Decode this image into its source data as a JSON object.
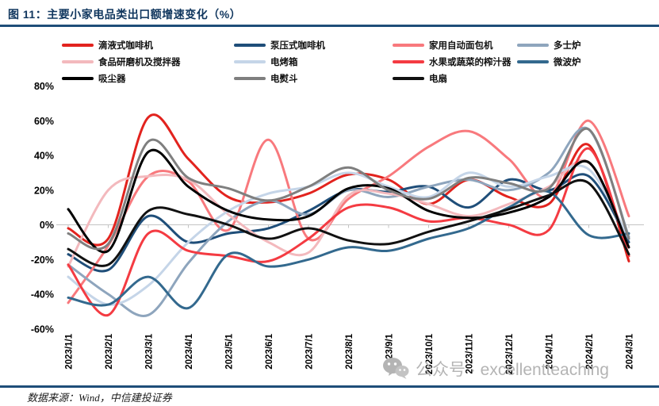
{
  "figure": {
    "title": "图 11：主要小家电品类出口额增速变化（%）"
  },
  "footer": {
    "source": "数据来源：Wind，中信建投证券"
  },
  "watermark": {
    "text": "公众号 · excellentteaching",
    "icon": "wechat-icon",
    "color": "#b4b4b4"
  },
  "colors": {
    "title": "#10365e",
    "rule": "#1f4e79",
    "zero_axis": "#c4c4c4",
    "tick_label": "#000000"
  },
  "chart_data": {
    "type": "line",
    "title": "主要小家电品类出口额增速变化（%）",
    "xlabel": "",
    "ylabel": "",
    "x": [
      "2023/1/1",
      "2023/2/1",
      "2023/3/1",
      "2023/4/1",
      "2023/5/1",
      "2023/6/1",
      "2023/7/1",
      "2023/8/1",
      "2023/9/1",
      "2023/10/1",
      "2023/11/1",
      "2023/12/1",
      "2024/1/1",
      "2024/2/1",
      "2024/3/1"
    ],
    "ylim": [
      -60,
      80
    ],
    "yticks": [
      80,
      60,
      40,
      20,
      0,
      -20,
      -40,
      -60
    ],
    "ytick_suffix": "%",
    "grid": false,
    "zero_axis": true,
    "legend_position": "top",
    "unit": "percent_yoy_growth",
    "series": [
      {
        "name": "滴液式咖啡机",
        "color": "#e2231e",
        "values": [
          -2,
          -8,
          62,
          38,
          16,
          13,
          18,
          29,
          26,
          12,
          26,
          16,
          12,
          46,
          -21
        ]
      },
      {
        "name": "泵压式咖啡机",
        "color": "#1f4e79",
        "values": [
          -17,
          -26,
          5,
          -10,
          -5,
          -2,
          8,
          20,
          19,
          22,
          10,
          26,
          20,
          28,
          -10
        ]
      },
      {
        "name": "家用自动面包机",
        "color": "#f8797d",
        "values": [
          -45,
          -12,
          28,
          25,
          -3,
          49,
          -8,
          15,
          28,
          45,
          54,
          38,
          16,
          60,
          5
        ]
      },
      {
        "name": "多士炉",
        "color": "#8ea5bd",
        "values": [
          -23,
          -40,
          -52,
          -22,
          2,
          14,
          6,
          20,
          16,
          22,
          26,
          20,
          30,
          55,
          -7
        ]
      },
      {
        "name": "食品研磨机及搅拌器",
        "color": "#f3b9bd",
        "values": [
          -24,
          20,
          28,
          26,
          6,
          -10,
          -16,
          17,
          18,
          12,
          5,
          12,
          22,
          36,
          -13
        ]
      },
      {
        "name": "电烤箱",
        "color": "#c5d5e8",
        "values": [
          -30,
          -46,
          -35,
          -10,
          8,
          18,
          22,
          30,
          22,
          16,
          30,
          22,
          28,
          32,
          -8
        ]
      },
      {
        "name": "水果或蔬菜的榨汁器",
        "color": "#f43b42",
        "values": [
          -23,
          -52,
          -5,
          -15,
          -18,
          -21,
          -8,
          10,
          10,
          2,
          4,
          0,
          -3,
          44,
          -18
        ]
      },
      {
        "name": "微波炉",
        "color": "#33698e",
        "values": [
          -42,
          -46,
          -30,
          -48,
          -17,
          -24,
          -20,
          -13,
          -15,
          -8,
          -2,
          10,
          19,
          -6,
          -5
        ]
      },
      {
        "name": "吸尘器",
        "color": "#000000",
        "values": [
          9,
          -15,
          42,
          22,
          8,
          3,
          5,
          21,
          21,
          8,
          4,
          7,
          16,
          36,
          -13
        ]
      },
      {
        "name": "电熨斗",
        "color": "#7f7f7f",
        "values": [
          -5,
          -11,
          48,
          27,
          21,
          14,
          22,
          33,
          20,
          15,
          27,
          24,
          21,
          55,
          -8
        ]
      },
      {
        "name": "电扇",
        "color": "#111111",
        "values": [
          -14,
          -23,
          8,
          6,
          0,
          -8,
          -2,
          -9,
          -11,
          -4,
          2,
          9,
          17,
          24,
          -17
        ]
      }
    ]
  }
}
